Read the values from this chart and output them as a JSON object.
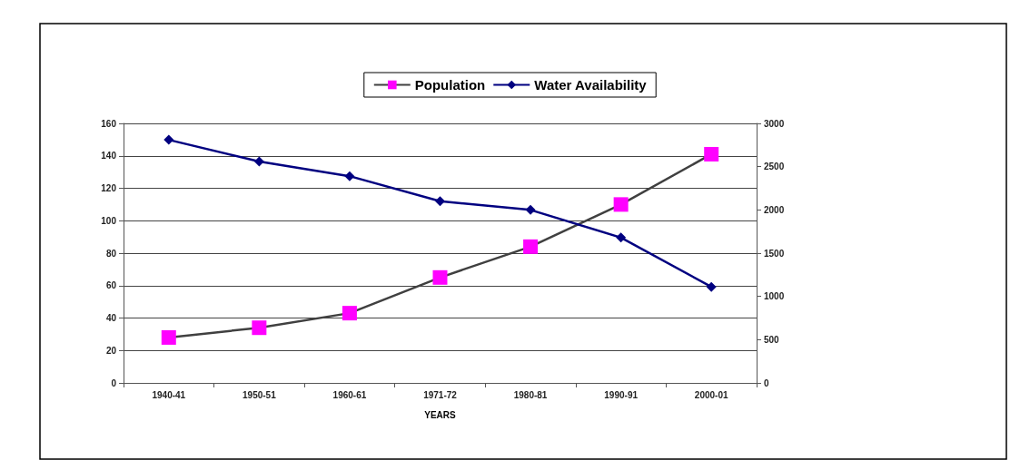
{
  "chart_data": {
    "type": "line",
    "xlabel": "YEARS",
    "categories": [
      "1940-41",
      "1950-51",
      "1960-61",
      "1971-72",
      "1980-81",
      "1990-91",
      "2000-01"
    ],
    "series": [
      {
        "name": "Population",
        "color": "#ff00ff",
        "marker": "square",
        "values": [
          28,
          34,
          43,
          65,
          84,
          110,
          141
        ]
      },
      {
        "name": "Water Availability",
        "color": "#000080",
        "marker": "diamond",
        "axis": "y2",
        "values": [
          2810,
          2560,
          2390,
          2100,
          2000,
          1680,
          1110
        ]
      }
    ],
    "ylim": [
      0,
      160
    ],
    "yticks": [
      0,
      20,
      40,
      60,
      80,
      100,
      120,
      140,
      160
    ],
    "y2lim": [
      0,
      3000
    ],
    "y2ticks": [
      0,
      500,
      1000,
      1500,
      2000,
      2500,
      3000
    ],
    "grid": "y",
    "legend": "top"
  }
}
